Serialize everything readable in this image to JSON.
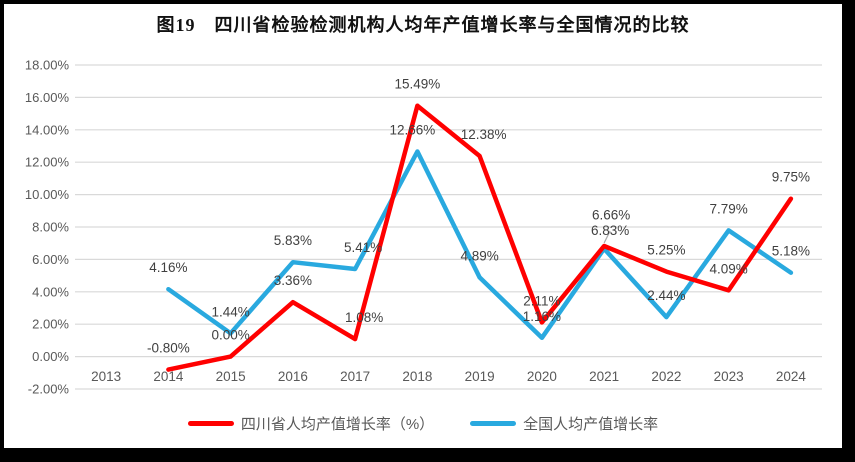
{
  "chart_data": {
    "type": "line",
    "title": "图19　四川省检验检测机构人均年产值增长率与全国情况的比较",
    "categories": [
      "2013",
      "2014",
      "2015",
      "2016",
      "2017",
      "2018",
      "2019",
      "2020",
      "2021",
      "2022",
      "2023",
      "2024"
    ],
    "series": [
      {
        "name": "四川省人均产值增长率（%）",
        "color": "#FF0000",
        "values": [
          null,
          -0.8,
          0.0,
          3.36,
          1.08,
          15.49,
          12.38,
          2.11,
          6.83,
          5.25,
          4.09,
          9.75
        ]
      },
      {
        "name": "全国人均产值增长率",
        "color": "#29A9DF",
        "values": [
          null,
          4.16,
          1.44,
          5.83,
          5.41,
          12.66,
          4.89,
          1.16,
          6.66,
          2.44,
          7.79,
          5.18
        ]
      }
    ],
    "xlabel": "",
    "ylabel": "",
    "ylim": [
      -2,
      18
    ],
    "ytick_step": 2,
    "y_tick_labels": [
      "18.00%",
      "16.00%",
      "14.00%",
      "12.00%",
      "10.00%",
      "8.00%",
      "6.00%",
      "4.00%",
      "2.00%",
      "0.00%",
      "-2.00%"
    ],
    "grid": true,
    "legend_position": "bottom",
    "data_labels": true,
    "label_format": "0.00%"
  },
  "styles": {
    "grid_color": "#D9D9D9",
    "tick_color": "#595959",
    "data_label_color": "#404040",
    "leader_color": "#ABABAB",
    "frame_color": "#000000",
    "background": "#FFFFFF"
  }
}
